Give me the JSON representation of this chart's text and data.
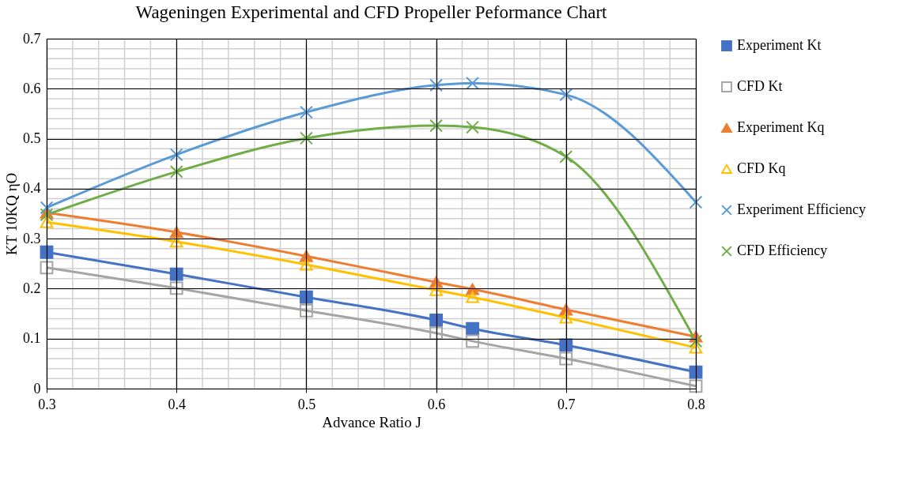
{
  "chart_data": {
    "type": "line",
    "title": "Wageningen Experimental and CFD Propeller Peformance Chart",
    "xlabel": "Advance Ratio J",
    "ylabel": "KT 10KQ ηO",
    "x": [
      0.3,
      0.4,
      0.5,
      0.6,
      0.628,
      0.7,
      0.8
    ],
    "series": [
      {
        "name": "Experiment Kt",
        "color": "#4472c4",
        "marker": "square",
        "values": [
          0.273,
          0.229,
          0.183,
          0.137,
          0.12,
          0.087,
          0.033
        ]
      },
      {
        "name": "CFD Kt",
        "color": "#a5a5a5",
        "marker": "square",
        "values": [
          0.242,
          0.201,
          0.156,
          0.111,
          0.095,
          0.06,
          0.005
        ]
      },
      {
        "name": "Experiment Kq",
        "color": "#ed7d31",
        "marker": "triangle",
        "values": [
          0.352,
          0.313,
          0.265,
          0.213,
          0.199,
          0.158,
          0.104
        ]
      },
      {
        "name": "CFD Kq",
        "color": "#ffc000",
        "marker": "triangle",
        "values": [
          0.333,
          0.294,
          0.248,
          0.197,
          0.183,
          0.142,
          0.082
        ]
      },
      {
        "name": "Experiment Efficiency",
        "color": "#5b9bd5",
        "marker": "cross",
        "values": [
          0.362,
          0.468,
          0.553,
          0.607,
          0.611,
          0.588,
          0.373
        ]
      },
      {
        "name": "CFD Efficiency",
        "color": "#70ad47",
        "marker": "cross",
        "values": [
          0.348,
          0.434,
          0.501,
          0.526,
          0.523,
          0.464,
          0.095
        ]
      }
    ],
    "xlim": [
      0.3,
      0.8
    ],
    "xticks": [
      0.3,
      0.4,
      0.5,
      0.6,
      0.7,
      0.8
    ],
    "ylim": [
      0,
      0.7
    ],
    "yticks": [
      0,
      0.1,
      0.2,
      0.3,
      0.4,
      0.5,
      0.6,
      0.7
    ],
    "grid": true,
    "legend": "right",
    "line_style": "solid"
  }
}
